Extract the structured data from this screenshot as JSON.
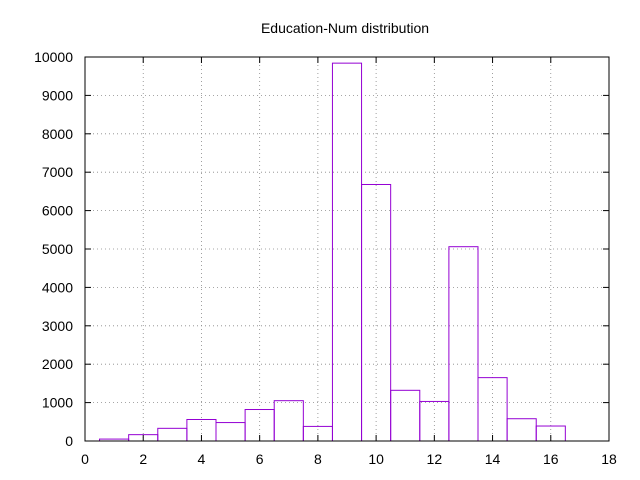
{
  "chart_data": {
    "type": "bar",
    "title": "Education-Num distribution",
    "xlabel": "",
    "ylabel": "",
    "xlim": [
      0,
      18
    ],
    "ylim": [
      0,
      10000
    ],
    "grid": true,
    "bar_color": "#9400d3",
    "x_ticks": [
      "0",
      "2",
      "4",
      "6",
      "8",
      "10",
      "12",
      "14",
      "16",
      "18"
    ],
    "y_ticks": [
      "0",
      "1000",
      "2000",
      "3000",
      "4000",
      "5000",
      "6000",
      "7000",
      "8000",
      "9000",
      "10000"
    ],
    "x": [
      1,
      2,
      3,
      4,
      5,
      6,
      7,
      8,
      9,
      10,
      11,
      12,
      13,
      14,
      15,
      16
    ],
    "values": [
      50,
      165,
      330,
      560,
      480,
      820,
      1050,
      380,
      9840,
      6680,
      1320,
      1030,
      5060,
      1650,
      580,
      390
    ]
  }
}
